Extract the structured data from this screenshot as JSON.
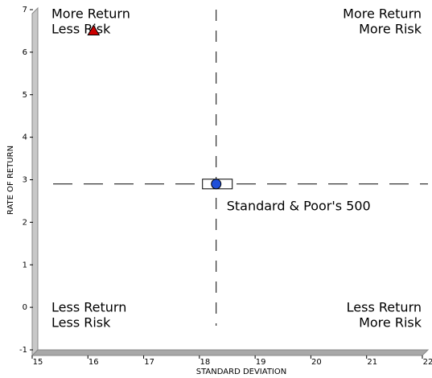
{
  "chart_data": {
    "type": "scatter",
    "xlabel": "STANDARD DEVIATION",
    "ylabel": "RATE OF RETURN",
    "xlim": [
      15,
      22
    ],
    "xticks": [
      15,
      16,
      17,
      18,
      19,
      20,
      21,
      22
    ],
    "ylim": [
      -1,
      7
    ],
    "yticks": [
      -1,
      0,
      1,
      2,
      3,
      4,
      5,
      6,
      7
    ],
    "series": [
      {
        "name": "Standard & Poor's 500",
        "color": "#1f4fd8",
        "marker": "circle",
        "x": [
          18.2
        ],
        "y": [
          2.9
        ]
      },
      {
        "color": "#cc0000",
        "marker": "triangle",
        "x": [
          16.0
        ],
        "y": [
          6.5
        ]
      }
    ],
    "annotations": [
      [
        "More Return",
        "Less Risk"
      ],
      [
        "More Return",
        "More Risk"
      ],
      [
        "Less Return",
        "Less Risk"
      ],
      [
        "Less Return",
        "More Risk"
      ]
    ]
  }
}
